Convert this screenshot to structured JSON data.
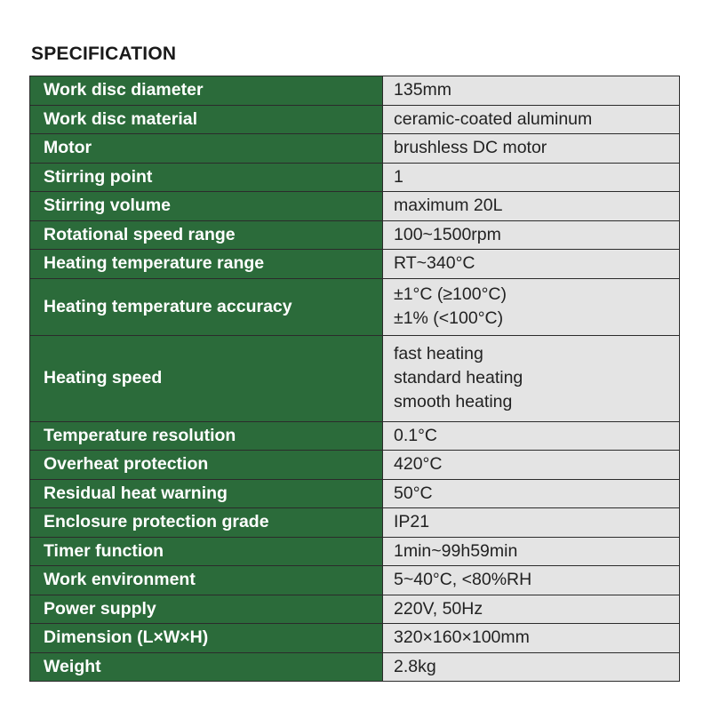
{
  "title": "SPECIFICATION",
  "rows": [
    {
      "label": "Work disc diameter",
      "values": [
        "135mm"
      ]
    },
    {
      "label": "Work disc material",
      "values": [
        "ceramic-coated aluminum"
      ]
    },
    {
      "label": "Motor",
      "values": [
        "brushless DC motor"
      ]
    },
    {
      "label": "Stirring point",
      "values": [
        "1"
      ]
    },
    {
      "label": "Stirring volume",
      "values": [
        "maximum 20L"
      ]
    },
    {
      "label": "Rotational speed range",
      "values": [
        "100~1500rpm"
      ]
    },
    {
      "label": "Heating temperature range",
      "values": [
        "RT~340°C"
      ]
    },
    {
      "label": "Heating temperature accuracy",
      "values": [
        "±1°C (≥100°C)",
        "±1% (<100°C)"
      ]
    },
    {
      "label": "Heating speed",
      "values": [
        "fast heating",
        "standard heating",
        "smooth heating"
      ]
    },
    {
      "label": "Temperature resolution",
      "values": [
        "0.1°C"
      ]
    },
    {
      "label": "Overheat protection",
      "values": [
        "420°C"
      ]
    },
    {
      "label": "Residual heat warning",
      "values": [
        "50°C"
      ]
    },
    {
      "label": "Enclosure protection grade",
      "values": [
        "IP21"
      ]
    },
    {
      "label": "Timer function",
      "values": [
        "1min~99h59min"
      ]
    },
    {
      "label": "Work environment",
      "values": [
        "5~40°C, <80%RH"
      ]
    },
    {
      "label": "Power supply",
      "values": [
        "220V, 50Hz"
      ]
    },
    {
      "label": "Dimension (L×W×H)",
      "values": [
        "320×160×100mm"
      ]
    },
    {
      "label": "Weight",
      "values": [
        "2.8kg"
      ]
    }
  ]
}
